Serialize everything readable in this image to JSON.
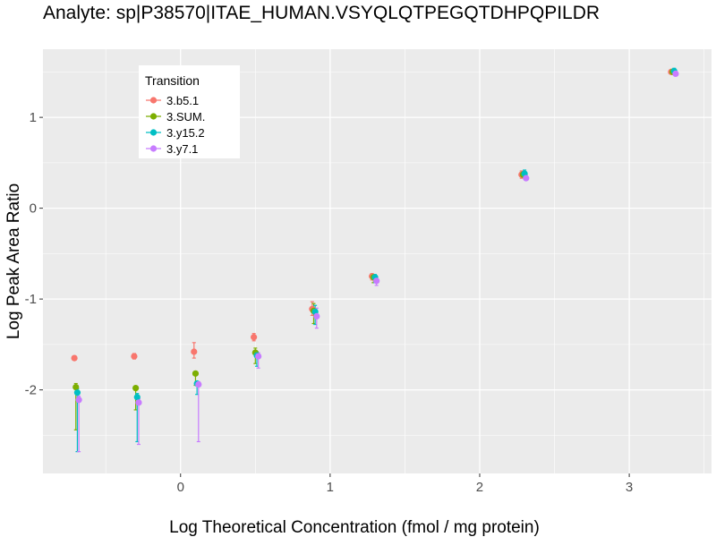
{
  "chart_data": {
    "type": "scatter",
    "title": "Analyte: sp|P38570|ITAE_HUMAN.VSYQLQTPEGQTDHPQPILDR",
    "xlabel": "Log Theoretical Concentration (fmol / mg protein)",
    "ylabel": "Log Peak Area Ratio",
    "xlim": [
      -0.92,
      3.55
    ],
    "ylim": [
      -2.92,
      1.75
    ],
    "x_ticks": [
      0,
      1,
      2,
      3
    ],
    "x_tick_labels": [
      "0",
      "1",
      "2",
      "3"
    ],
    "y_ticks": [
      -2,
      -1,
      0,
      1
    ],
    "y_tick_labels": [
      "-2",
      "-1",
      "0",
      "1"
    ],
    "grid": true,
    "legend": {
      "title": "Transition",
      "position": "top-left"
    },
    "series": [
      {
        "name": "3.b5.1",
        "color": "#F8766D",
        "points": [
          {
            "x": -0.71,
            "y": -1.65,
            "lo": -1.65,
            "hi": -1.65
          },
          {
            "x": -0.31,
            "y": -1.63,
            "lo": -1.66,
            "hi": -1.6
          },
          {
            "x": 0.09,
            "y": -1.58,
            "lo": -1.65,
            "hi": -1.48
          },
          {
            "x": 0.49,
            "y": -1.42,
            "lo": -1.46,
            "hi": -1.38
          },
          {
            "x": 0.88,
            "y": -1.11,
            "lo": -1.18,
            "hi": -1.03
          },
          {
            "x": 1.28,
            "y": -0.75,
            "lo": -0.79,
            "hi": -0.72
          },
          {
            "x": 2.28,
            "y": 0.37,
            "lo": 0.33,
            "hi": 0.41
          },
          {
            "x": 3.28,
            "y": 1.5,
            "lo": 1.48,
            "hi": 1.52
          }
        ]
      },
      {
        "name": "3.SUM.",
        "color": "#7CAE00",
        "points": [
          {
            "x": -0.7,
            "y": -1.97,
            "lo": -2.44,
            "hi": -1.93
          },
          {
            "x": -0.3,
            "y": -1.98,
            "lo": -2.22,
            "hi": -1.96
          },
          {
            "x": 0.1,
            "y": -1.82,
            "lo": -1.95,
            "hi": -1.8
          },
          {
            "x": 0.5,
            "y": -1.59,
            "lo": -1.71,
            "hi": -1.54
          },
          {
            "x": 0.89,
            "y": -1.13,
            "lo": -1.27,
            "hi": -1.05
          },
          {
            "x": 1.29,
            "y": -0.76,
            "lo": -0.82,
            "hi": -0.73
          },
          {
            "x": 2.29,
            "y": 0.37,
            "lo": 0.34,
            "hi": 0.4
          },
          {
            "x": 3.29,
            "y": 1.5,
            "lo": 1.48,
            "hi": 1.53
          }
        ]
      },
      {
        "name": "3.y15.2",
        "color": "#00BFC4",
        "points": [
          {
            "x": -0.69,
            "y": -2.03,
            "lo": -2.68,
            "hi": -1.99
          },
          {
            "x": -0.29,
            "y": -2.08,
            "lo": -2.57,
            "hi": -2.04
          },
          {
            "x": 0.11,
            "y": -1.93,
            "lo": -2.05,
            "hi": -1.91
          },
          {
            "x": 0.51,
            "y": -1.62,
            "lo": -1.74,
            "hi": -1.58
          },
          {
            "x": 0.9,
            "y": -1.14,
            "lo": -1.28,
            "hi": -1.07
          },
          {
            "x": 1.3,
            "y": -0.76,
            "lo": -0.82,
            "hi": -0.73
          },
          {
            "x": 2.3,
            "y": 0.38,
            "lo": 0.34,
            "hi": 0.42
          },
          {
            "x": 3.3,
            "y": 1.51,
            "lo": 1.48,
            "hi": 1.54
          }
        ]
      },
      {
        "name": "3.y7.1",
        "color": "#C77CFF",
        "points": [
          {
            "x": -0.68,
            "y": -2.11,
            "lo": -2.68,
            "hi": -2.07
          },
          {
            "x": -0.28,
            "y": -2.14,
            "lo": -2.6,
            "hi": -2.1
          },
          {
            "x": 0.12,
            "y": -1.94,
            "lo": -2.57,
            "hi": -1.91
          },
          {
            "x": 0.52,
            "y": -1.63,
            "lo": -1.76,
            "hi": -1.59
          },
          {
            "x": 0.91,
            "y": -1.19,
            "lo": -1.32,
            "hi": -1.1
          },
          {
            "x": 1.31,
            "y": -0.8,
            "lo": -0.85,
            "hi": -0.76
          },
          {
            "x": 2.31,
            "y": 0.33,
            "lo": 0.31,
            "hi": 0.36
          },
          {
            "x": 3.31,
            "y": 1.48,
            "lo": 1.46,
            "hi": 1.5
          }
        ]
      }
    ]
  }
}
